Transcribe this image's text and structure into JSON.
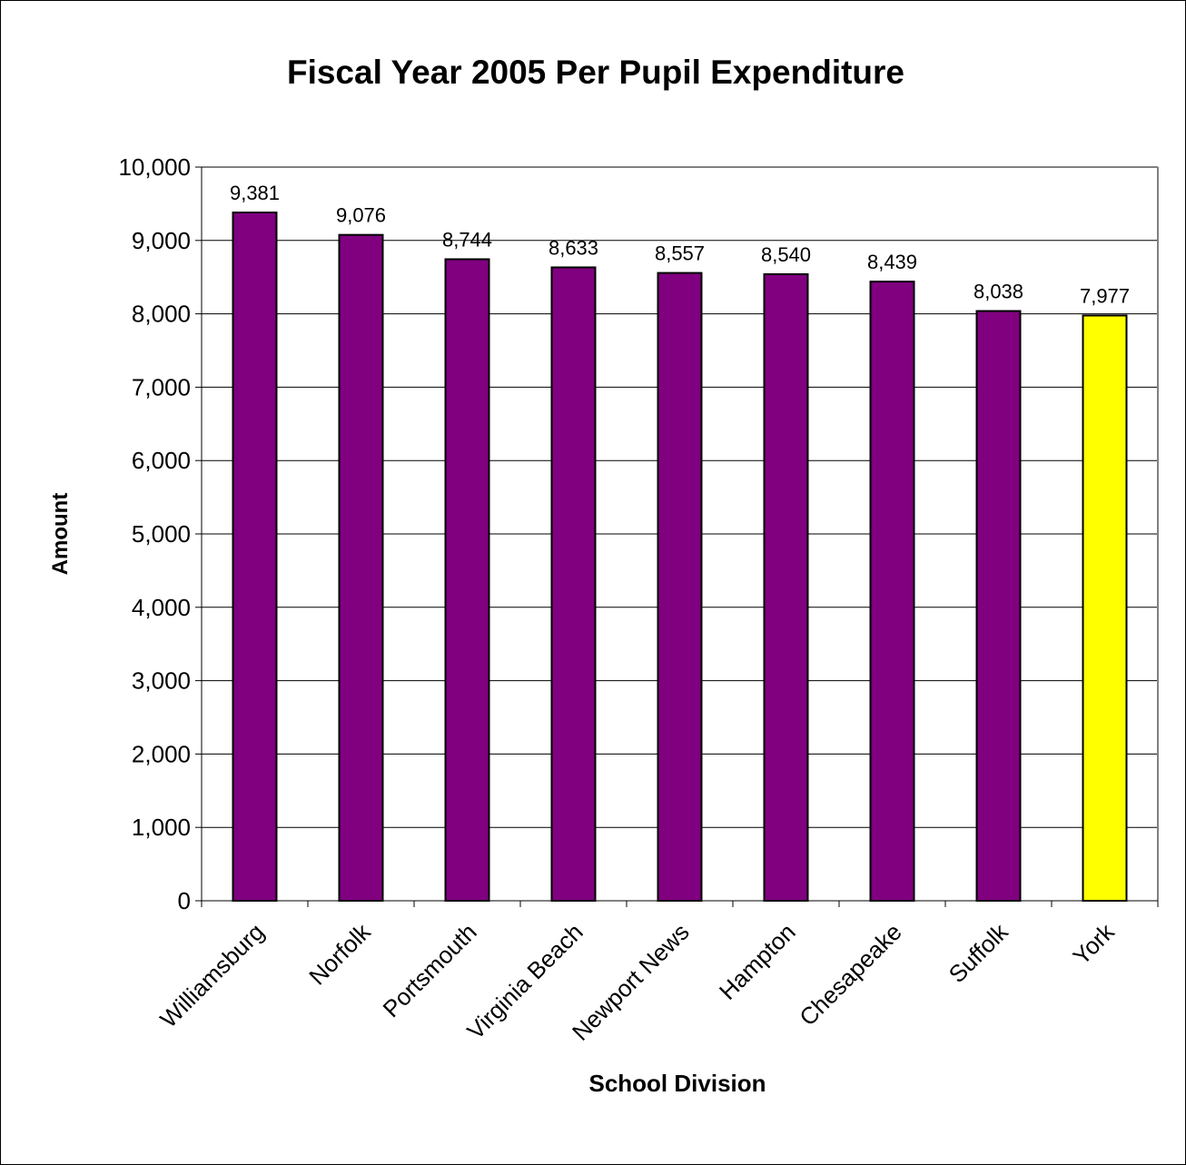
{
  "chart_data": {
    "type": "bar",
    "title": "Fiscal Year 2005 Per Pupil Expenditure",
    "xlabel": "School Division",
    "ylabel": "Amount",
    "categories": [
      "Williamsburg",
      "Norfolk",
      "Portsmouth",
      "Virginia Beach",
      "Newport News",
      "Hampton",
      "Chesapeake",
      "Suffolk",
      "York"
    ],
    "values": [
      9381,
      9076,
      8744,
      8633,
      8557,
      8540,
      8439,
      8038,
      7977
    ],
    "data_labels": [
      "9,381",
      "9,076",
      "8,744",
      "8,633",
      "8,557",
      "8,540",
      "8,439",
      "8,038",
      "7,977"
    ],
    "ylim": [
      0,
      10000
    ],
    "yticks": [
      0,
      1000,
      2000,
      3000,
      4000,
      5000,
      6000,
      7000,
      8000,
      9000,
      10000
    ],
    "ytick_labels": [
      "0",
      "1,000",
      "2,000",
      "3,000",
      "4,000",
      "5,000",
      "6,000",
      "7,000",
      "8,000",
      "9,000",
      "10,000"
    ],
    "grid": true,
    "legend": "none",
    "colors": {
      "bar": "#800080",
      "highlight_bar": "#FFFF00",
      "highlight_category": "York",
      "gridline": "#000000",
      "plot_border": "#808080"
    }
  }
}
